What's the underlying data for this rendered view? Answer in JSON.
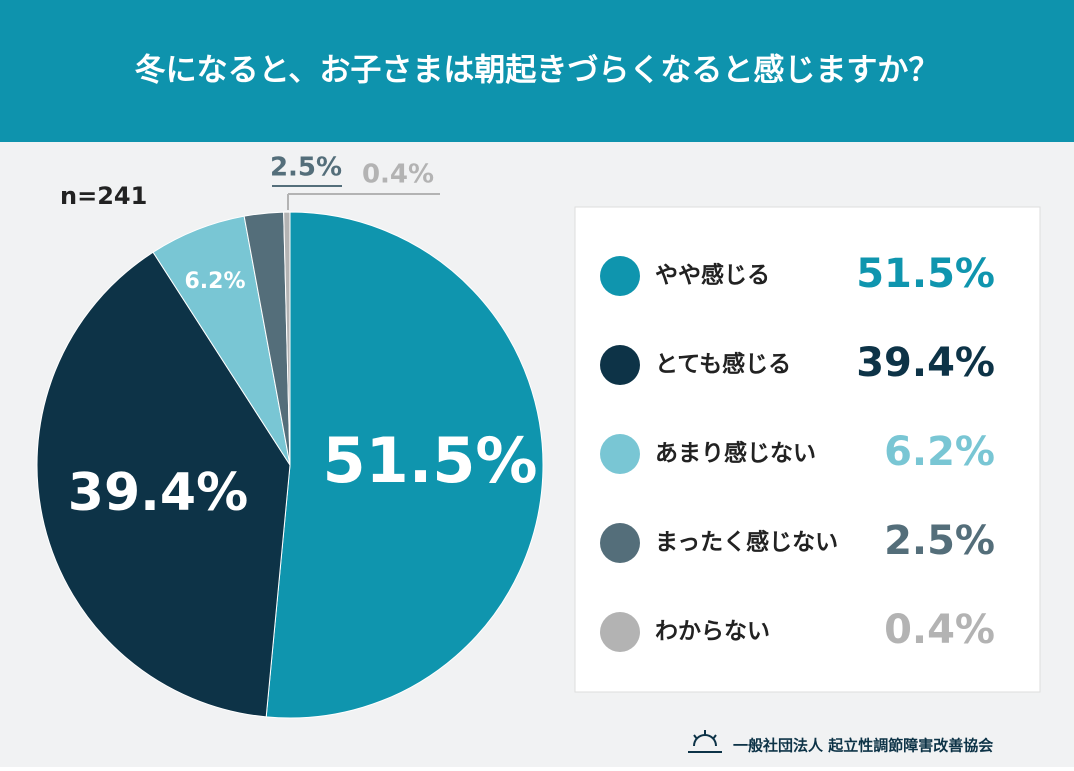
{
  "chart_data": {
    "type": "pie",
    "title": "冬になると、お子さまは朝起きづらくなると感じますか？",
    "note": "n=241",
    "categories": [
      "やや感じる",
      "とても感じる",
      "あまり感じない",
      "まったく感じない",
      "わからない"
    ],
    "values": [
      51.5,
      39.4,
      6.2,
      2.5,
      0.4
    ],
    "value_labels": [
      "51.5%",
      "39.4%",
      "6.2%",
      "2.5%",
      "0.4%"
    ],
    "colors": [
      "#0f95ae",
      "#0d3347",
      "#79c6d4",
      "#546e7a",
      "#b3b3b3"
    ],
    "legend": "right",
    "source": "一般社団法人 起立性調節障害改善協会"
  }
}
